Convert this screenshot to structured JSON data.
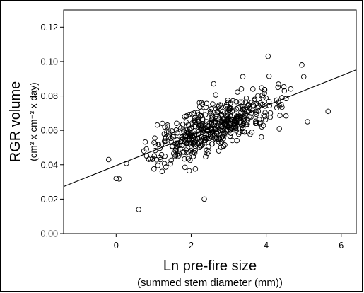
{
  "chart_data": {
    "type": "scatter",
    "xlabel": "Ln pre-fire size",
    "xlabel_sub": "(summed stem diameter (mm))",
    "ylabel": "RGR volume",
    "ylabel_sub": "(cm³ x cm⁻³ x day)",
    "xlim": [
      -1.4,
      6.4
    ],
    "ylim": [
      0.0,
      0.13
    ],
    "xticks": [
      0,
      2,
      4,
      6
    ],
    "yticks": [
      0.0,
      0.02,
      0.04,
      0.06,
      0.08,
      0.1,
      0.12
    ],
    "xtick_labels": [
      "0",
      "2",
      "4",
      "6"
    ],
    "ytick_labels": [
      "0.00",
      "0.02",
      "0.04",
      "0.06",
      "0.08",
      "0.10",
      "0.12"
    ],
    "grid": false,
    "marker": "open-circle",
    "n_points": 520,
    "x_center": 2.6,
    "fit_line": {
      "intercept": 0.0395,
      "slope": 0.0087,
      "x_range": [
        -1.4,
        6.4
      ]
    },
    "highlighted_points": [
      {
        "x": 0.6,
        "y": 0.014
      },
      {
        "x": 0.0,
        "y": 0.032
      },
      {
        "x": 2.35,
        "y": 0.02
      },
      {
        "x": 4.05,
        "y": 0.103
      },
      {
        "x": 5.65,
        "y": 0.071
      },
      {
        "x": 4.95,
        "y": 0.098
      },
      {
        "x": 2.6,
        "y": 0.087
      },
      {
        "x": 5.1,
        "y": 0.065
      },
      {
        "x": -0.2,
        "y": 0.043
      },
      {
        "x": 1.3,
        "y": 0.045
      },
      {
        "x": 1.9,
        "y": 0.055
      },
      {
        "x": 3.0,
        "y": 0.065
      },
      {
        "x": 3.6,
        "y": 0.07
      },
      {
        "x": 4.4,
        "y": 0.075
      }
    ]
  }
}
